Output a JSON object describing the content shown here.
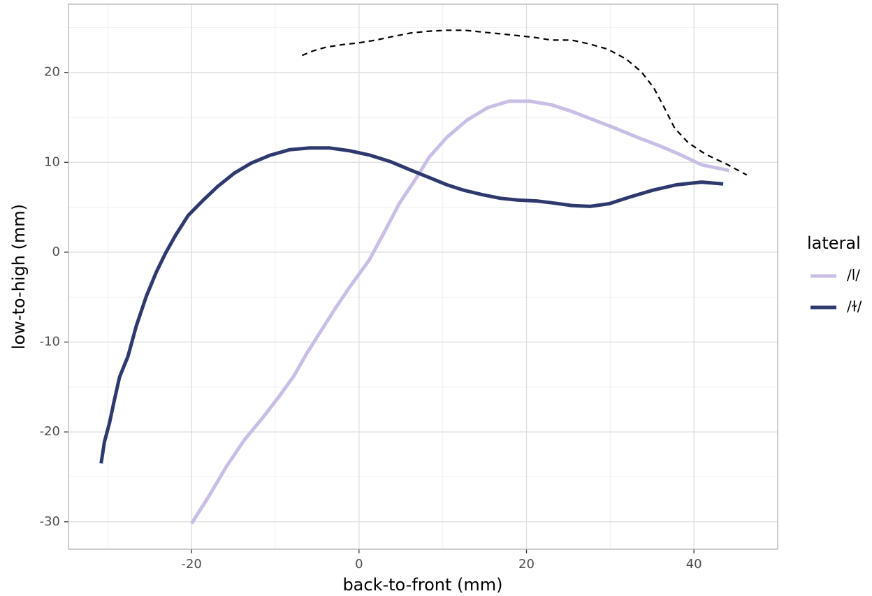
{
  "chart_data": {
    "type": "line",
    "x_label": "back-to-front (mm)",
    "y_label": "low-to-high (mm)",
    "legend_title": "lateral",
    "legend_position": "right",
    "grid": true,
    "xlim": [
      -34.7,
      50.0
    ],
    "ylim": [
      -33.05,
      27.6
    ],
    "xticks": [
      -20,
      0,
      20,
      40
    ],
    "yticks": [
      -30,
      -20,
      -10,
      0,
      10,
      20
    ],
    "xminor": [
      -30,
      -10,
      10,
      30
    ],
    "yminor": [
      -25,
      -15,
      -5,
      5,
      15,
      25
    ],
    "series": [
      {
        "name": "/l/",
        "color": "#c9bfe6",
        "width": 5,
        "x": [
          -20.0,
          -17.9,
          -15.8,
          -13.7,
          -11.4,
          -9.5,
          -7.8,
          -6.2,
          -4.5,
          -2.8,
          -1.2,
          1.2,
          3.0,
          4.8,
          6.8,
          8.4,
          10.5,
          12.9,
          15.4,
          17.9,
          20.4,
          23.0,
          25.6,
          28.1,
          30.6,
          33.2,
          36.0,
          38.5,
          41.0,
          44.2
        ],
        "values": [
          -30.2,
          -27.1,
          -23.8,
          -20.9,
          -18.3,
          -16.0,
          -13.8,
          -11.2,
          -8.7,
          -6.2,
          -4.0,
          -0.9,
          2.2,
          5.4,
          8.2,
          10.6,
          12.8,
          14.7,
          16.1,
          16.8,
          16.8,
          16.4,
          15.6,
          14.7,
          13.8,
          12.8,
          11.8,
          10.8,
          9.7,
          9.1
        ]
      },
      {
        "name": "/ɫ/",
        "color": "#2e3a6e",
        "width": 5,
        "x": [
          -30.8,
          -30.4,
          -29.8,
          -29.3,
          -28.6,
          -27.6,
          -26.6,
          -25.4,
          -24.2,
          -23.1,
          -21.9,
          -20.4,
          -18.7,
          -16.9,
          -14.9,
          -12.9,
          -10.6,
          -8.3,
          -5.9,
          -3.5,
          -1.2,
          1.3,
          3.7,
          6.0,
          8.4,
          10.5,
          12.5,
          14.7,
          16.9,
          19.0,
          21.2,
          23.0,
          25.4,
          27.6,
          29.9,
          32.2,
          35.1,
          37.9,
          40.9,
          43.5
        ],
        "values": [
          -23.5,
          -21.1,
          -19.0,
          -16.8,
          -13.9,
          -11.6,
          -8.2,
          -4.9,
          -2.2,
          -0.1,
          1.9,
          4.1,
          5.7,
          7.3,
          8.8,
          9.9,
          10.8,
          11.4,
          11.6,
          11.6,
          11.3,
          10.8,
          10.1,
          9.2,
          8.3,
          7.5,
          6.9,
          6.4,
          6.0,
          5.8,
          5.7,
          5.5,
          5.2,
          5.1,
          5.4,
          6.1,
          6.9,
          7.5,
          7.8,
          7.6
        ]
      },
      {
        "color": "#000000",
        "width": 2.2,
        "dash": true,
        "x": [
          -6.8,
          -5.5,
          -4.0,
          -2.0,
          0.0,
          2.0,
          4.0,
          6.2,
          8.4,
          10.5,
          12.6,
          14.7,
          16.9,
          19.0,
          21.0,
          23.0,
          25.4,
          27.4,
          29.7,
          31.9,
          33.7,
          35.2,
          36.4,
          37.7,
          39.3,
          41.4,
          43.9,
          46.3
        ],
        "values": [
          21.9,
          22.4,
          22.8,
          23.1,
          23.3,
          23.6,
          24.0,
          24.4,
          24.6,
          24.7,
          24.7,
          24.5,
          24.3,
          24.1,
          23.9,
          23.6,
          23.6,
          23.2,
          22.6,
          21.5,
          20.1,
          18.3,
          16.2,
          13.8,
          12.2,
          10.9,
          9.8,
          8.6
        ]
      }
    ]
  }
}
